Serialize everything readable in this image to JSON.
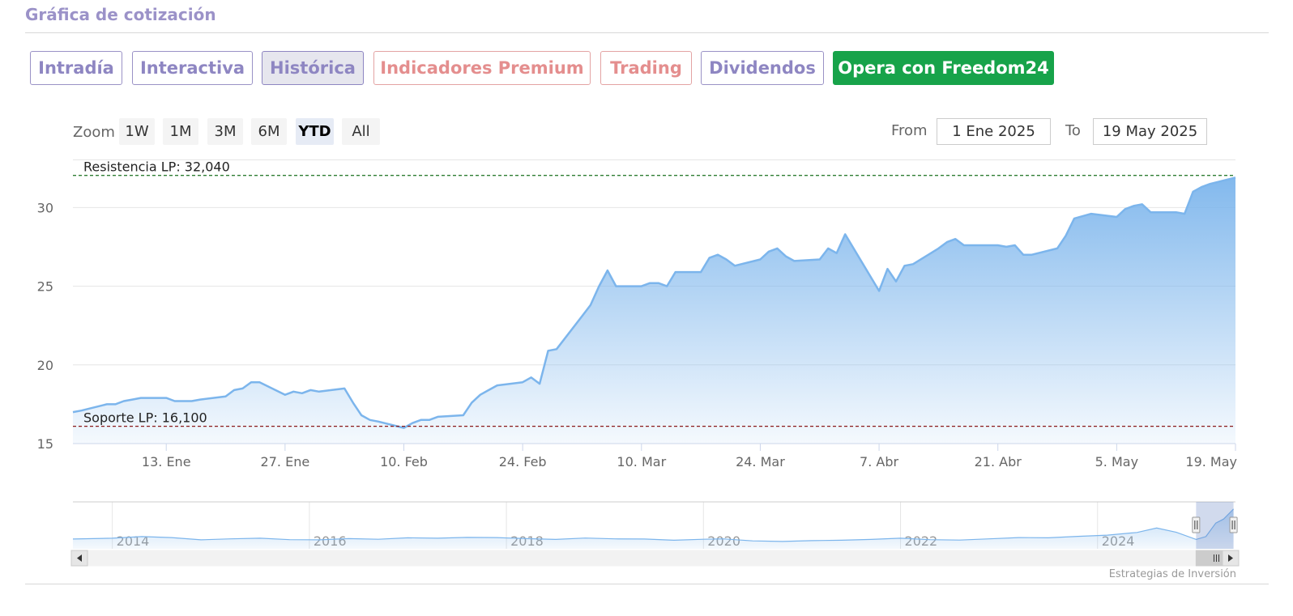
{
  "section": {
    "title": "Gráfica de cotización"
  },
  "tabs": [
    {
      "label": "Intradía",
      "style": "normal"
    },
    {
      "label": "Interactiva",
      "style": "normal"
    },
    {
      "label": "Histórica",
      "style": "active"
    },
    {
      "label": "Indicadores Premium",
      "style": "premium"
    },
    {
      "label": "Trading",
      "style": "premium"
    },
    {
      "label": "Dividendos",
      "style": "normal"
    },
    {
      "label": "Opera con Freedom24",
      "style": "cta"
    }
  ],
  "range_selector": {
    "zoom_label": "Zoom",
    "buttons": [
      "1W",
      "1M",
      "3M",
      "6M",
      "YTD",
      "All"
    ],
    "selected": "YTD",
    "from_label": "From",
    "from_value": "1 Ene 2025",
    "to_label": "To",
    "to_value": "19 May 2025"
  },
  "credits": "Estrategias de Inversión",
  "colors": {
    "line": "#7cb5ec",
    "resistance": "#2e7d32",
    "support": "#8b1a1a",
    "cta": "#17a34a",
    "tab_text": "#8e86c2",
    "premium_text": "#e48e8e"
  },
  "chart_data": {
    "type": "area",
    "x_axis": {
      "type": "date",
      "range": [
        "2025-01-02",
        "2025-05-19"
      ],
      "tick_labels": [
        "13. Ene",
        "27. Ene",
        "10. Feb",
        "24. Feb",
        "10. Mar",
        "24. Mar",
        "7. Abr",
        "21. Abr",
        "5. May",
        "19. May"
      ],
      "tick_dates": [
        "2025-01-13",
        "2025-01-27",
        "2025-02-10",
        "2025-02-24",
        "2025-03-10",
        "2025-03-24",
        "2025-04-07",
        "2025-04-21",
        "2025-05-05",
        "2025-05-19"
      ]
    },
    "y_axis": {
      "min": 15,
      "max": 33,
      "tick_labels": [
        "15",
        "20",
        "25",
        "30"
      ],
      "ticks": [
        15,
        20,
        25,
        30
      ],
      "grid": true
    },
    "plot_lines": [
      {
        "label": "Resistencia LP: 32,040",
        "value": 32.04,
        "style": "dashed",
        "color": "#2e7d32"
      },
      {
        "label": "Soporte LP: 16,100",
        "value": 16.1,
        "style": "dashed",
        "color": "#8b1a1a"
      }
    ],
    "series": [
      {
        "points": [
          [
            "2025-01-02",
            17.0
          ],
          [
            "2025-01-03",
            17.1
          ],
          [
            "2025-01-06",
            17.5
          ],
          [
            "2025-01-07",
            17.5
          ],
          [
            "2025-01-08",
            17.7
          ],
          [
            "2025-01-09",
            17.8
          ],
          [
            "2025-01-10",
            17.9
          ],
          [
            "2025-01-13",
            17.9
          ],
          [
            "2025-01-14",
            17.7
          ],
          [
            "2025-01-15",
            17.7
          ],
          [
            "2025-01-16",
            17.7
          ],
          [
            "2025-01-17",
            17.8
          ],
          [
            "2025-01-20",
            18.0
          ],
          [
            "2025-01-21",
            18.4
          ],
          [
            "2025-01-22",
            18.5
          ],
          [
            "2025-01-23",
            18.9
          ],
          [
            "2025-01-24",
            18.9
          ],
          [
            "2025-01-27",
            18.1
          ],
          [
            "2025-01-28",
            18.3
          ],
          [
            "2025-01-29",
            18.2
          ],
          [
            "2025-01-30",
            18.4
          ],
          [
            "2025-01-31",
            18.3
          ],
          [
            "2025-02-03",
            18.5
          ],
          [
            "2025-02-04",
            17.6
          ],
          [
            "2025-02-05",
            16.8
          ],
          [
            "2025-02-06",
            16.5
          ],
          [
            "2025-02-07",
            16.4
          ],
          [
            "2025-02-10",
            16.0
          ],
          [
            "2025-02-11",
            16.3
          ],
          [
            "2025-02-12",
            16.5
          ],
          [
            "2025-02-13",
            16.5
          ],
          [
            "2025-02-14",
            16.7
          ],
          [
            "2025-02-17",
            16.8
          ],
          [
            "2025-02-18",
            17.6
          ],
          [
            "2025-02-19",
            18.1
          ],
          [
            "2025-02-20",
            18.4
          ],
          [
            "2025-02-21",
            18.7
          ],
          [
            "2025-02-24",
            18.9
          ],
          [
            "2025-02-25",
            19.2
          ],
          [
            "2025-02-26",
            18.8
          ],
          [
            "2025-02-27",
            20.9
          ],
          [
            "2025-02-28",
            21.0
          ],
          [
            "2025-03-03",
            23.1
          ],
          [
            "2025-03-04",
            23.8
          ],
          [
            "2025-03-05",
            25.0
          ],
          [
            "2025-03-06",
            26.0
          ],
          [
            "2025-03-07",
            25.0
          ],
          [
            "2025-03-10",
            25.0
          ],
          [
            "2025-03-11",
            25.2
          ],
          [
            "2025-03-12",
            25.2
          ],
          [
            "2025-03-13",
            25.0
          ],
          [
            "2025-03-14",
            25.9
          ],
          [
            "2025-03-17",
            25.9
          ],
          [
            "2025-03-18",
            26.8
          ],
          [
            "2025-03-19",
            27.0
          ],
          [
            "2025-03-20",
            26.7
          ],
          [
            "2025-03-21",
            26.3
          ],
          [
            "2025-03-24",
            26.7
          ],
          [
            "2025-03-25",
            27.2
          ],
          [
            "2025-03-26",
            27.4
          ],
          [
            "2025-03-27",
            26.9
          ],
          [
            "2025-03-28",
            26.6
          ],
          [
            "2025-03-31",
            26.7
          ],
          [
            "2025-04-01",
            27.4
          ],
          [
            "2025-04-02",
            27.1
          ],
          [
            "2025-04-03",
            28.3
          ],
          [
            "2025-04-07",
            24.7
          ],
          [
            "2025-04-08",
            26.1
          ],
          [
            "2025-04-09",
            25.3
          ],
          [
            "2025-04-10",
            26.3
          ],
          [
            "2025-04-11",
            26.4
          ],
          [
            "2025-04-14",
            27.4
          ],
          [
            "2025-04-15",
            27.8
          ],
          [
            "2025-04-16",
            28.0
          ],
          [
            "2025-04-17",
            27.6
          ],
          [
            "2025-04-21",
            27.6
          ],
          [
            "2025-04-22",
            27.5
          ],
          [
            "2025-04-23",
            27.6
          ],
          [
            "2025-04-24",
            27.0
          ],
          [
            "2025-04-25",
            27.0
          ],
          [
            "2025-04-28",
            27.4
          ],
          [
            "2025-04-29",
            28.2
          ],
          [
            "2025-04-30",
            29.3
          ],
          [
            "2025-05-02",
            29.6
          ],
          [
            "2025-05-05",
            29.4
          ],
          [
            "2025-05-06",
            29.9
          ],
          [
            "2025-05-07",
            30.1
          ],
          [
            "2025-05-08",
            30.2
          ],
          [
            "2025-05-09",
            29.7
          ],
          [
            "2025-05-12",
            29.7
          ],
          [
            "2025-05-13",
            29.6
          ],
          [
            "2025-05-14",
            31.0
          ],
          [
            "2025-05-15",
            31.3
          ],
          [
            "2025-05-16",
            31.5
          ],
          [
            "2025-05-19",
            31.9
          ]
        ]
      }
    ],
    "navigator": {
      "tick_labels": [
        "2014",
        "2016",
        "2018",
        "2020",
        "2022",
        "2024"
      ],
      "range": [
        2013.6,
        2025.4
      ],
      "selected_range": [
        2025.0,
        2025.38
      ],
      "series": [
        [
          2013.6,
          17.2
        ],
        [
          2014.0,
          17.6
        ],
        [
          2014.3,
          18.4
        ],
        [
          2014.6,
          17.9
        ],
        [
          2014.9,
          16.8
        ],
        [
          2015.2,
          17.3
        ],
        [
          2015.5,
          17.6
        ],
        [
          2015.8,
          16.9
        ],
        [
          2016.1,
          16.8
        ],
        [
          2016.4,
          17.4
        ],
        [
          2016.7,
          17.1
        ],
        [
          2017.0,
          17.8
        ],
        [
          2017.3,
          17.6
        ],
        [
          2017.6,
          18.0
        ],
        [
          2017.9,
          17.9
        ],
        [
          2018.2,
          17.4
        ],
        [
          2018.5,
          17.0
        ],
        [
          2018.8,
          17.7
        ],
        [
          2019.1,
          17.3
        ],
        [
          2019.4,
          17.2
        ],
        [
          2019.7,
          16.6
        ],
        [
          2020.0,
          17.1
        ],
        [
          2020.2,
          17.3
        ],
        [
          2020.5,
          16.3
        ],
        [
          2020.8,
          16.0
        ],
        [
          2021.1,
          16.4
        ],
        [
          2021.4,
          16.6
        ],
        [
          2021.7,
          17.0
        ],
        [
          2022.0,
          17.6
        ],
        [
          2022.3,
          16.9
        ],
        [
          2022.6,
          16.7
        ],
        [
          2022.9,
          17.3
        ],
        [
          2023.2,
          17.9
        ],
        [
          2023.5,
          17.8
        ],
        [
          2023.8,
          18.5
        ],
        [
          2024.1,
          19.1
        ],
        [
          2024.4,
          20.4
        ],
        [
          2024.6,
          22.6
        ],
        [
          2024.8,
          20.5
        ],
        [
          2025.0,
          17.0
        ],
        [
          2025.1,
          18.4
        ],
        [
          2025.2,
          25.0
        ],
        [
          2025.28,
          27.0
        ],
        [
          2025.38,
          31.9
        ]
      ]
    }
  }
}
